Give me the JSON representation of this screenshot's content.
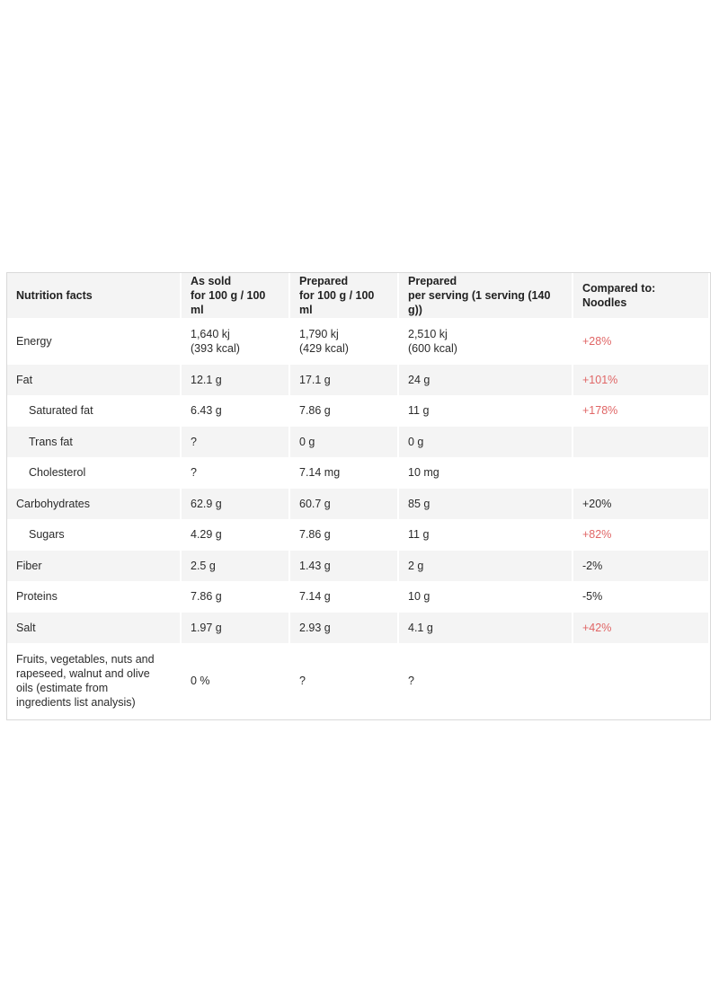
{
  "table": {
    "headers": [
      {
        "line1": "Nutrition facts",
        "line2": ""
      },
      {
        "line1": "As sold",
        "line2": "for 100 g / 100 ml"
      },
      {
        "line1": "Prepared",
        "line2": "for 100 g / 100 ml"
      },
      {
        "line1": "Prepared",
        "line2": "per serving (1 serving (140 g))"
      },
      {
        "line1": "Compared to: Noodles",
        "line2": ""
      }
    ],
    "rows": [
      {
        "name": "Energy",
        "as_sold_1": "1,640 kj",
        "as_sold_2": "(393 kcal)",
        "prep100_1": "1,790 kj",
        "prep100_2": "(429 kcal)",
        "serving_1": "2,510 kj",
        "serving_2": "(600 kcal)",
        "compared": "+28%",
        "compared_color": "#e06666"
      },
      {
        "name": "Fat",
        "as_sold": "12.1 g",
        "prep100": "17.1 g",
        "serving": "24 g",
        "compared": "+101%",
        "compared_color": "#e06666"
      },
      {
        "name": "Saturated fat",
        "as_sold": "6.43 g",
        "prep100": "7.86 g",
        "serving": "11 g",
        "compared": "+178%",
        "compared_color": "#e06666"
      },
      {
        "name": "Trans fat",
        "as_sold": "?",
        "prep100": "0 g",
        "serving": "0 g",
        "compared": ""
      },
      {
        "name": "Cholesterol",
        "as_sold": "?",
        "prep100": "7.14 mg",
        "serving": "10 mg",
        "compared": ""
      },
      {
        "name": "Carbohydrates",
        "as_sold": "62.9 g",
        "prep100": "60.7 g",
        "serving": "85 g",
        "compared": "+20%",
        "compared_color": "#2b2b2b"
      },
      {
        "name": "Sugars",
        "as_sold": "4.29 g",
        "prep100": "7.86 g",
        "serving": "11 g",
        "compared": "+82%",
        "compared_color": "#e06666"
      },
      {
        "name": "Fiber",
        "as_sold": "2.5 g",
        "prep100": "1.43 g",
        "serving": "2 g",
        "compared": "-2%",
        "compared_color": "#2b2b2b"
      },
      {
        "name": "Proteins",
        "as_sold": "7.86 g",
        "prep100": "7.14 g",
        "serving": "10 g",
        "compared": "-5%",
        "compared_color": "#2b2b2b"
      },
      {
        "name": "Salt",
        "as_sold": "1.97 g",
        "prep100": "2.93 g",
        "serving": "4.1 g",
        "compared": "+42%",
        "compared_color": "#e06666"
      },
      {
        "name_lines": [
          "Fruits, vegetables, nuts and",
          "rapeseed, walnut and olive",
          "oils (estimate from",
          "ingredients list analysis)"
        ],
        "as_sold": "0 %",
        "prep100": "?",
        "serving": "?",
        "compared": ""
      }
    ]
  }
}
